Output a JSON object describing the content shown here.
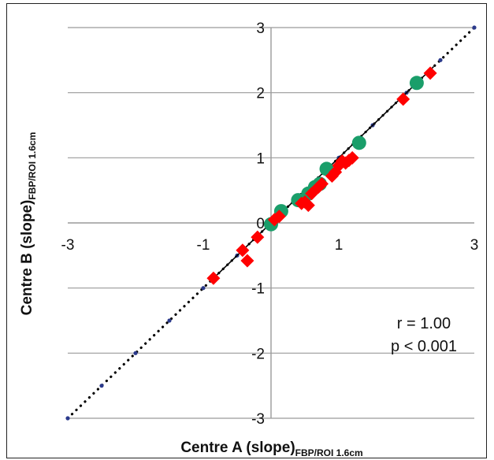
{
  "chart_data": {
    "type": "scatter",
    "xlabel": {
      "main": "Centre A (slope)",
      "sub": "FBP/ROI 1.6cm"
    },
    "ylabel": {
      "main": "Centre B (slope)",
      "sub": "FBP/ROI 1.6cm"
    },
    "xlim": [
      -3,
      3
    ],
    "ylim": [
      -3,
      3
    ],
    "x_ticks": [
      -3,
      -1,
      1,
      3
    ],
    "y_ticks": [
      -3,
      -2,
      -1,
      0,
      1,
      2,
      3
    ],
    "x_tick_labels": [
      "-3",
      "-1",
      "1",
      "3"
    ],
    "y_tick_labels": [
      "-3",
      "-2",
      "-1",
      "0",
      "1",
      "2",
      "3"
    ],
    "grid": true,
    "series": [
      {
        "marker": "circle",
        "color": "#1a9e6a",
        "x": [
          0.0,
          0.15,
          0.4,
          0.55,
          0.65,
          0.72,
          0.82,
          1.3,
          2.15
        ],
        "y": [
          -0.02,
          0.18,
          0.35,
          0.45,
          0.55,
          0.6,
          0.83,
          1.23,
          2.15
        ]
      },
      {
        "marker": "diamond",
        "color": "#ff0000",
        "x": [
          -0.85,
          -0.42,
          -0.35,
          -0.2,
          0.05,
          0.12,
          0.45,
          0.5,
          0.55,
          0.6,
          0.7,
          0.75,
          0.9,
          0.95,
          1.0,
          1.05,
          1.1,
          1.15,
          1.2,
          1.95,
          2.35
        ],
        "y": [
          -0.85,
          -0.42,
          -0.58,
          -0.22,
          0.05,
          0.1,
          0.3,
          0.32,
          0.27,
          0.45,
          0.55,
          0.6,
          0.72,
          0.78,
          0.88,
          0.95,
          0.92,
          0.96,
          1.0,
          1.9,
          2.3
        ]
      }
    ],
    "identity_line": {
      "style": "dotted",
      "color": "#000000",
      "x": [
        -3,
        3
      ],
      "y": [
        -3,
        3
      ]
    },
    "fit_line": {
      "style": "solid",
      "color": "#000000",
      "x": [
        -0.9,
        2.4
      ],
      "y": [
        -0.9,
        2.4
      ]
    },
    "annotations": [
      "r = 1.00",
      "p < 0.001"
    ]
  }
}
